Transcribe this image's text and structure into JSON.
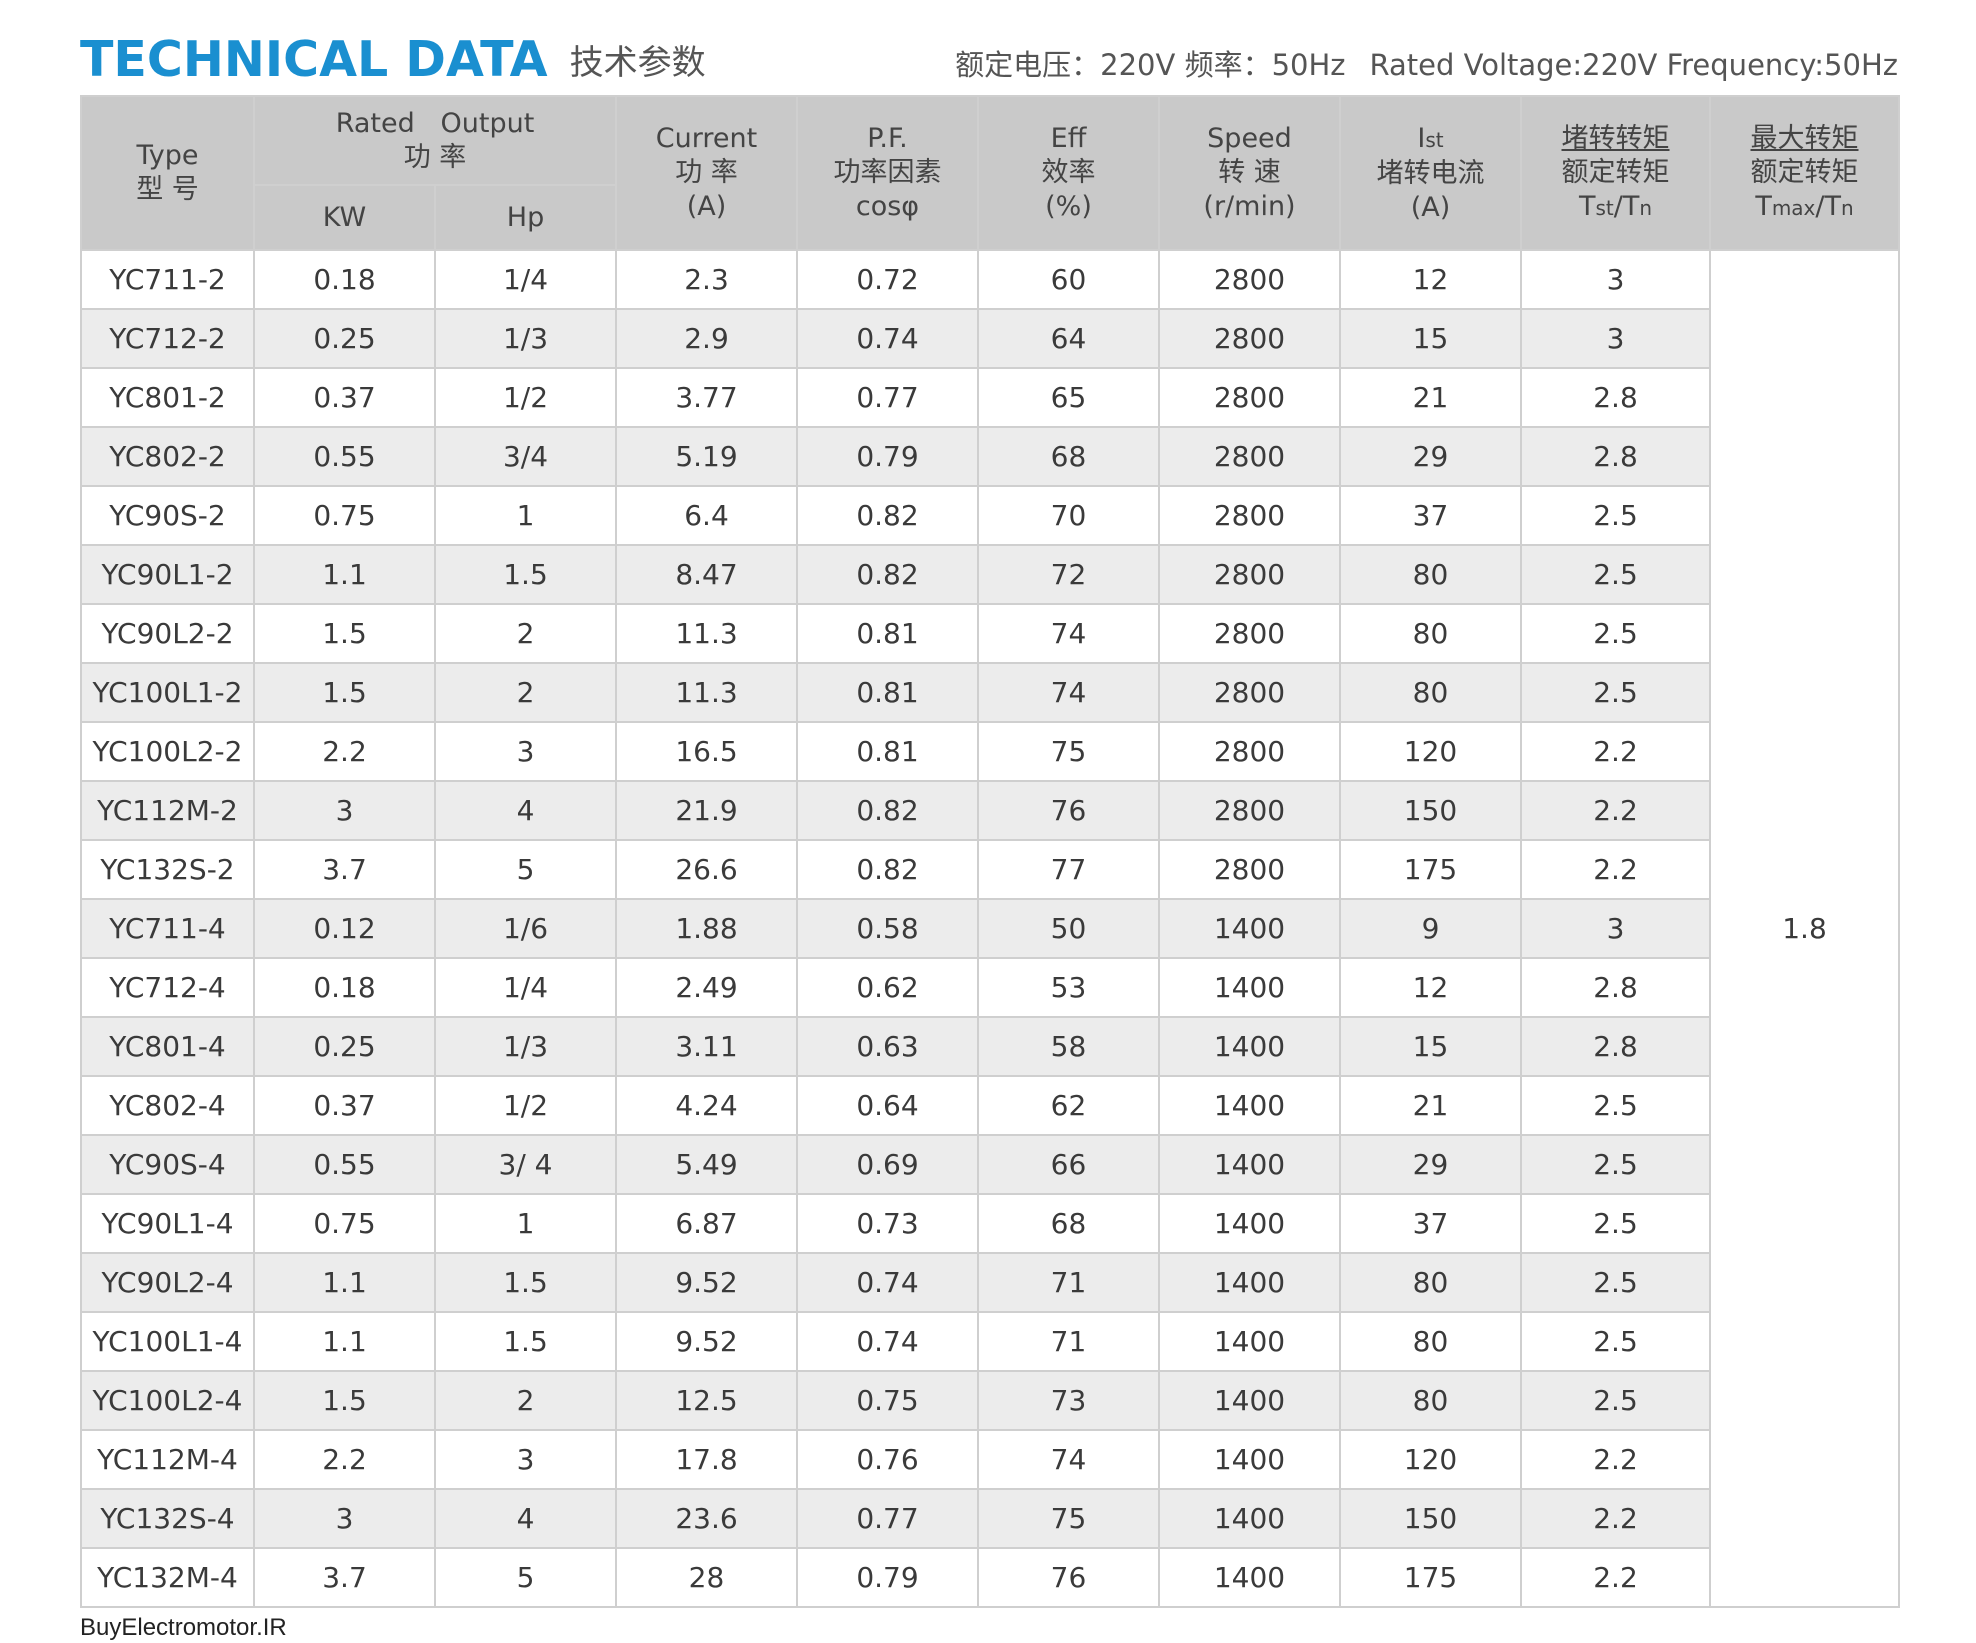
{
  "header": {
    "title_en": "TECHNICAL DATA",
    "title_cn": "技术参数",
    "spec_cn": "额定电压：220V  频率：50Hz",
    "spec_en": "Rated Voltage:220V  Frequency:50Hz"
  },
  "columns": {
    "type": {
      "en": "Type",
      "cn": "型 号"
    },
    "rated_output": {
      "en": "Rated   Output",
      "cn": "功 率"
    },
    "kw": "KW",
    "hp": "Hp",
    "current": {
      "en": "Current",
      "cn": "功 率",
      "unit": "(A)"
    },
    "pf": {
      "en": "P.F.",
      "cn": "功率因素",
      "sym": "cosφ"
    },
    "eff": {
      "en": "Eff",
      "cn": "效率",
      "unit": "(%)"
    },
    "speed": {
      "en": "Speed",
      "cn": "转 速",
      "unit": "(r/min)"
    },
    "ist": {
      "main": "I",
      "sub": "st",
      "cn": "堵转电流",
      "unit": "(A)"
    },
    "tst": {
      "num": "堵转转矩",
      "den": "额定转矩",
      "t1": "T",
      "s1": "st",
      "slash": "/T",
      "s2": "n"
    },
    "tmax": {
      "num": "最大转矩",
      "den": "额定转矩",
      "t1": "T",
      "s1": "max",
      "slash": "/T",
      "s2": "n"
    }
  },
  "rows": [
    {
      "type": "YC711-2",
      "kw": "0.18",
      "hp": "1/4",
      "current": "2.3",
      "pf": "0.72",
      "eff": "60",
      "speed": "2800",
      "ist": "12",
      "tst": "3"
    },
    {
      "type": "YC712-2",
      "kw": "0.25",
      "hp": "1/3",
      "current": "2.9",
      "pf": "0.74",
      "eff": "64",
      "speed": "2800",
      "ist": "15",
      "tst": "3"
    },
    {
      "type": "YC801-2",
      "kw": "0.37",
      "hp": "1/2",
      "current": "3.77",
      "pf": "0.77",
      "eff": "65",
      "speed": "2800",
      "ist": "21",
      "tst": "2.8"
    },
    {
      "type": "YC802-2",
      "kw": "0.55",
      "hp": "3/4",
      "current": "5.19",
      "pf": "0.79",
      "eff": "68",
      "speed": "2800",
      "ist": "29",
      "tst": "2.8"
    },
    {
      "type": "YC90S-2",
      "kw": "0.75",
      "hp": "1",
      "current": "6.4",
      "pf": "0.82",
      "eff": "70",
      "speed": "2800",
      "ist": "37",
      "tst": "2.5"
    },
    {
      "type": "YC90L1-2",
      "kw": "1.1",
      "hp": "1.5",
      "current": "8.47",
      "pf": "0.82",
      "eff": "72",
      "speed": "2800",
      "ist": "80",
      "tst": "2.5"
    },
    {
      "type": "YC90L2-2",
      "kw": "1.5",
      "hp": "2",
      "current": "11.3",
      "pf": "0.81",
      "eff": "74",
      "speed": "2800",
      "ist": "80",
      "tst": "2.5"
    },
    {
      "type": "YC100L1-2",
      "kw": "1.5",
      "hp": "2",
      "current": "11.3",
      "pf": "0.81",
      "eff": "74",
      "speed": "2800",
      "ist": "80",
      "tst": "2.5"
    },
    {
      "type": "YC100L2-2",
      "kw": "2.2",
      "hp": "3",
      "current": "16.5",
      "pf": "0.81",
      "eff": "75",
      "speed": "2800",
      "ist": "120",
      "tst": "2.2"
    },
    {
      "type": "YC112M-2",
      "kw": "3",
      "hp": "4",
      "current": "21.9",
      "pf": "0.82",
      "eff": "76",
      "speed": "2800",
      "ist": "150",
      "tst": "2.2"
    },
    {
      "type": "YC132S-2",
      "kw": "3.7",
      "hp": "5",
      "current": "26.6",
      "pf": "0.82",
      "eff": "77",
      "speed": "2800",
      "ist": "175",
      "tst": "2.2"
    },
    {
      "type": "YC711-4",
      "kw": "0.12",
      "hp": "1/6",
      "current": "1.88",
      "pf": "0.58",
      "eff": "50",
      "speed": "1400",
      "ist": "9",
      "tst": "3"
    },
    {
      "type": "YC712-4",
      "kw": "0.18",
      "hp": "1/4",
      "current": "2.49",
      "pf": "0.62",
      "eff": "53",
      "speed": "1400",
      "ist": "12",
      "tst": "2.8"
    },
    {
      "type": "YC801-4",
      "kw": "0.25",
      "hp": "1/3",
      "current": "3.11",
      "pf": "0.63",
      "eff": "58",
      "speed": "1400",
      "ist": "15",
      "tst": "2.8"
    },
    {
      "type": "YC802-4",
      "kw": "0.37",
      "hp": "1/2",
      "current": "4.24",
      "pf": "0.64",
      "eff": "62",
      "speed": "1400",
      "ist": "21",
      "tst": "2.5"
    },
    {
      "type": "YC90S-4",
      "kw": "0.55",
      "hp": "3/ 4",
      "current": "5.49",
      "pf": "0.69",
      "eff": "66",
      "speed": "1400",
      "ist": "29",
      "tst": "2.5"
    },
    {
      "type": "YC90L1-4",
      "kw": "0.75",
      "hp": "1",
      "current": "6.87",
      "pf": "0.73",
      "eff": "68",
      "speed": "1400",
      "ist": "37",
      "tst": "2.5"
    },
    {
      "type": "YC90L2-4",
      "kw": "1.1",
      "hp": "1.5",
      "current": "9.52",
      "pf": "0.74",
      "eff": "71",
      "speed": "1400",
      "ist": "80",
      "tst": "2.5"
    },
    {
      "type": "YC100L1-4",
      "kw": "1.1",
      "hp": "1.5",
      "current": "9.52",
      "pf": "0.74",
      "eff": "71",
      "speed": "1400",
      "ist": "80",
      "tst": "2.5"
    },
    {
      "type": "YC100L2-4",
      "kw": "1.5",
      "hp": "2",
      "current": "12.5",
      "pf": "0.75",
      "eff": "73",
      "speed": "1400",
      "ist": "80",
      "tst": "2.5"
    },
    {
      "type": "YC112M-4",
      "kw": "2.2",
      "hp": "3",
      "current": "17.8",
      "pf": "0.76",
      "eff": "74",
      "speed": "1400",
      "ist": "120",
      "tst": "2.2"
    },
    {
      "type": "YC132S-4",
      "kw": "3",
      "hp": "4",
      "current": "23.6",
      "pf": "0.77",
      "eff": "75",
      "speed": "1400",
      "ist": "150",
      "tst": "2.2"
    },
    {
      "type": "YC132M-4",
      "kw": "3.7",
      "hp": "5",
      "current": "28",
      "pf": "0.79",
      "eff": "76",
      "speed": "1400",
      "ist": "175",
      "tst": "2.2"
    }
  ],
  "tmax_value": "1.8",
  "footer": "BuyElectromotor.IR",
  "colors": {
    "title": "#1a8fd0",
    "header_bg": "#c9c9c9",
    "stripe": "#ececec",
    "border": "#cfcfcf"
  }
}
